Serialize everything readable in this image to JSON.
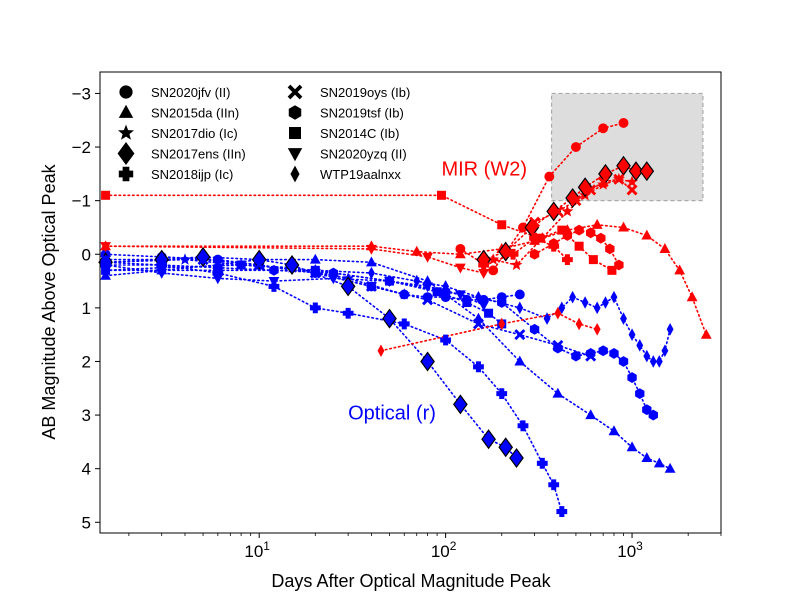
{
  "chart_data": {
    "type": "scatter",
    "title": "",
    "xlabel": "Days After Optical Magnitude Peak",
    "ylabel": "AB Magnitude Above Optical Peak",
    "xscale": "log",
    "xlim": [
      1.4,
      3000
    ],
    "ylim": [
      5.2,
      -3.4
    ],
    "y_inverted": true,
    "grid": false,
    "x_ticks": [
      {
        "value": 10,
        "base": "10",
        "exp": "1"
      },
      {
        "value": 100,
        "base": "10",
        "exp": "2"
      },
      {
        "value": 1000,
        "base": "10",
        "exp": "3"
      }
    ],
    "y_ticks": [
      {
        "value": -3,
        "label": "−3"
      },
      {
        "value": -2,
        "label": "−2"
      },
      {
        "value": -1,
        "label": "−1"
      },
      {
        "value": 0,
        "label": "0"
      },
      {
        "value": 1,
        "label": "1"
      },
      {
        "value": 2,
        "label": "2"
      },
      {
        "value": 3,
        "label": "3"
      },
      {
        "value": 4,
        "label": "4"
      },
      {
        "value": 5,
        "label": "5"
      }
    ],
    "annotations": [
      {
        "text": "MIR (W2)",
        "x": 95,
        "y": -1.6,
        "color": "#ff0000"
      },
      {
        "text": "Optical (r)",
        "x": 30,
        "y": 2.95,
        "color": "#0000ff"
      }
    ],
    "highlight_region": {
      "x": [
        370,
        2400
      ],
      "y": [
        -3.0,
        -1.0
      ]
    },
    "legend_placement": "top-left",
    "colors": {
      "optical": "#0000ff",
      "mir": "#ff0000",
      "region_fill": "#dddddd",
      "region_edge": "#aaaaaa"
    },
    "legend": [
      {
        "label": "SN2020jfv (II)",
        "marker": "circle"
      },
      {
        "label": "SN2015da (IIn)",
        "marker": "triangle-up"
      },
      {
        "label": "SN2017dio (Ic)",
        "marker": "star"
      },
      {
        "label": "SN2017ens (IIn)",
        "marker": "diamond"
      },
      {
        "label": "SN2018ijp (Ic)",
        "marker": "plus"
      },
      {
        "label": "SN2019oys (Ib)",
        "marker": "x"
      },
      {
        "label": "SN2019tsf (Ib)",
        "marker": "hexagon"
      },
      {
        "label": "SN2014C (Ib)",
        "marker": "square"
      },
      {
        "label": "SN2020yzq (II)",
        "marker": "triangle-down"
      },
      {
        "label": "WTP19aalnxx",
        "marker": "thin-diamond"
      }
    ],
    "series": [
      {
        "name": "SN2020jfv (II) optical",
        "band": "optical",
        "marker": "circle",
        "x": [
          1.5,
          3,
          6,
          10,
          20,
          40,
          60,
          80,
          100,
          130,
          160,
          200,
          250
        ],
        "y": [
          0.0,
          0.05,
          0.1,
          0.2,
          0.35,
          0.6,
          0.75,
          0.8,
          0.8,
          0.85,
          0.85,
          0.8,
          0.75
        ]
      },
      {
        "name": "SN2020jfv (II) MIR",
        "band": "mir",
        "marker": "circle",
        "x": [
          120,
          180,
          260,
          360,
          500,
          700,
          900
        ],
        "y": [
          -0.1,
          0.3,
          -0.5,
          -1.45,
          -2.0,
          -2.35,
          -2.45
        ]
      },
      {
        "name": "SN2015da (IIn) optical",
        "band": "optical",
        "marker": "triangle-up",
        "x": [
          1.5,
          3,
          6,
          10,
          20,
          40,
          80,
          150,
          250,
          400,
          600,
          800,
          1000,
          1200,
          1400,
          1600
        ],
        "y": [
          0.4,
          0.3,
          0.2,
          0.1,
          0.1,
          0.15,
          0.5,
          1.2,
          2.0,
          2.6,
          3.0,
          3.3,
          3.6,
          3.8,
          3.9,
          4.0
        ]
      },
      {
        "name": "SN2015da (IIn) MIR",
        "band": "mir",
        "marker": "triangle-up",
        "x": [
          1.5,
          40,
          70,
          120,
          200,
          300,
          450,
          650,
          900,
          1200,
          1500,
          1800,
          2100,
          2500
        ],
        "y": [
          -0.15,
          -0.15,
          -0.05,
          0.0,
          -0.1,
          -0.25,
          -0.45,
          -0.55,
          -0.5,
          -0.35,
          -0.1,
          0.3,
          0.8,
          1.5
        ]
      },
      {
        "name": "SN2017dio (Ic) optical",
        "band": "optical",
        "marker": "star",
        "x": [
          1.5,
          4,
          8,
          15,
          30,
          60
        ],
        "y": [
          0.15,
          0.1,
          0.2,
          0.25,
          0.45,
          0.75
        ]
      },
      {
        "name": "SN2017dio (Ic) MIR",
        "band": "mir",
        "marker": "star",
        "x": [
          180,
          240,
          330,
          450,
          560,
          700,
          850,
          1000
        ],
        "y": [
          0.1,
          0.2,
          -0.3,
          -0.8,
          -1.1,
          -1.3,
          -1.4,
          -1.35
        ]
      },
      {
        "name": "SN2017ens (IIn) optical",
        "band": "optical",
        "marker": "diamond",
        "x": [
          1.5,
          3,
          5,
          10,
          15,
          30,
          50,
          80,
          120,
          170,
          210,
          240
        ],
        "y": [
          0.15,
          0.1,
          0.05,
          0.1,
          0.2,
          0.6,
          1.2,
          2.0,
          2.8,
          3.45,
          3.6,
          3.8
        ]
      },
      {
        "name": "SN2017ens (IIn) MIR",
        "band": "mir",
        "marker": "diamond",
        "x": [
          160,
          210,
          290,
          380,
          480,
          560,
          720,
          900,
          1050,
          1200
        ],
        "y": [
          0.1,
          -0.05,
          -0.5,
          -0.8,
          -1.05,
          -1.25,
          -1.5,
          -1.65,
          -1.55,
          -1.55
        ]
      },
      {
        "name": "SN2018ijp (Ic) optical",
        "band": "optical",
        "marker": "plus",
        "x": [
          1.5,
          3,
          6,
          12,
          20,
          30,
          60,
          100,
          150,
          200,
          260,
          330,
          380,
          420
        ],
        "y": [
          0.2,
          0.2,
          0.35,
          0.6,
          1.0,
          1.1,
          1.3,
          1.6,
          2.1,
          2.6,
          3.2,
          3.9,
          4.3,
          4.8
        ]
      },
      {
        "name": "SN2018ijp (Ic) MIR",
        "band": "mir",
        "marker": "plus",
        "x": [
          160,
          230,
          300,
          380,
          450
        ],
        "y": [
          0.2,
          0.0,
          -0.3,
          -0.15,
          0.1
        ]
      },
      {
        "name": "SN2019oys (Ib) optical",
        "band": "optical",
        "marker": "x",
        "x": [
          1.5,
          5,
          10,
          20,
          40,
          80,
          150,
          250,
          400,
          600
        ],
        "y": [
          0.1,
          0.1,
          0.2,
          0.35,
          0.6,
          0.85,
          1.3,
          1.5,
          1.7,
          1.9
        ]
      },
      {
        "name": "SN2019oys (Ib) MIR",
        "band": "mir",
        "marker": "x",
        "x": [
          300,
          400,
          500,
          600,
          700,
          850,
          1000
        ],
        "y": [
          -0.6,
          -0.8,
          -1.0,
          -1.2,
          -1.35,
          -1.4,
          -1.2
        ]
      },
      {
        "name": "SN2019tsf (Ib) optical",
        "band": "optical",
        "marker": "hexagon",
        "x": [
          1.5,
          3,
          6,
          12,
          25,
          50,
          100,
          200,
          300,
          400,
          500,
          600,
          700,
          800,
          900,
          1000,
          1100,
          1200,
          1300
        ],
        "y": [
          0.15,
          0.2,
          0.25,
          0.3,
          0.35,
          0.5,
          0.7,
          0.9,
          1.4,
          1.75,
          1.9,
          1.85,
          1.8,
          1.85,
          2.0,
          2.3,
          2.6,
          2.9,
          3.0
        ]
      },
      {
        "name": "SN2019tsf (Ib) MIR",
        "band": "mir",
        "marker": "hexagon",
        "x": [
          300,
          380,
          450,
          520,
          600,
          680,
          760,
          850
        ],
        "y": [
          0.0,
          -0.2,
          -0.35,
          -0.45,
          -0.4,
          -0.3,
          -0.1,
          0.2
        ]
      },
      {
        "name": "SN2014C (Ib) optical",
        "band": "optical",
        "marker": "square",
        "x": [
          1.5,
          3,
          8,
          20,
          50,
          90,
          130,
          170,
          200
        ],
        "y": [
          0.3,
          0.25,
          0.2,
          0.3,
          0.5,
          0.7,
          0.9,
          1.1,
          1.3
        ]
      },
      {
        "name": "SN2014C (Ib) MIR",
        "band": "mir",
        "marker": "square",
        "x": [
          1.5,
          95,
          200,
          320,
          420,
          520,
          620,
          780
        ],
        "y": [
          -1.1,
          -1.1,
          -0.55,
          -0.3,
          -0.45,
          -0.15,
          0.1,
          0.3
        ]
      },
      {
        "name": "SN2020yzq (II) optical",
        "band": "optical",
        "marker": "triangle-down",
        "x": [
          1.5,
          3,
          6,
          12,
          25,
          50,
          80,
          120,
          160
        ],
        "y": [
          0.2,
          0.35,
          0.45,
          0.5,
          0.45,
          0.5,
          0.6,
          0.75,
          0.95
        ]
      },
      {
        "name": "SN2020yzq (II) MIR",
        "band": "mir",
        "marker": "triangle-down",
        "x": [
          1.5,
          40,
          80,
          120,
          160
        ],
        "y": [
          -0.15,
          -0.1,
          0.05,
          0.25,
          0.35
        ]
      },
      {
        "name": "WTP19aalnxx optical",
        "band": "optical",
        "marker": "thin-diamond",
        "x": [
          1.5,
          20,
          40,
          70,
          100,
          150,
          250,
          350,
          420,
          480,
          560,
          650,
          720,
          800,
          900,
          1000,
          1100,
          1200,
          1300,
          1400,
          1500,
          1600
        ],
        "y": [
          0.3,
          0.3,
          0.35,
          0.5,
          0.6,
          0.8,
          1.0,
          1.2,
          1.0,
          0.8,
          0.9,
          1.0,
          0.9,
          0.8,
          1.2,
          1.5,
          1.7,
          1.9,
          2.0,
          2.0,
          1.8,
          1.4
        ]
      },
      {
        "name": "WTP19aalnxx MIR",
        "band": "mir",
        "marker": "thin-diamond",
        "x": [
          45,
          200,
          400,
          520,
          650
        ],
        "y": [
          1.8,
          1.3,
          1.1,
          1.3,
          1.4
        ]
      }
    ]
  }
}
